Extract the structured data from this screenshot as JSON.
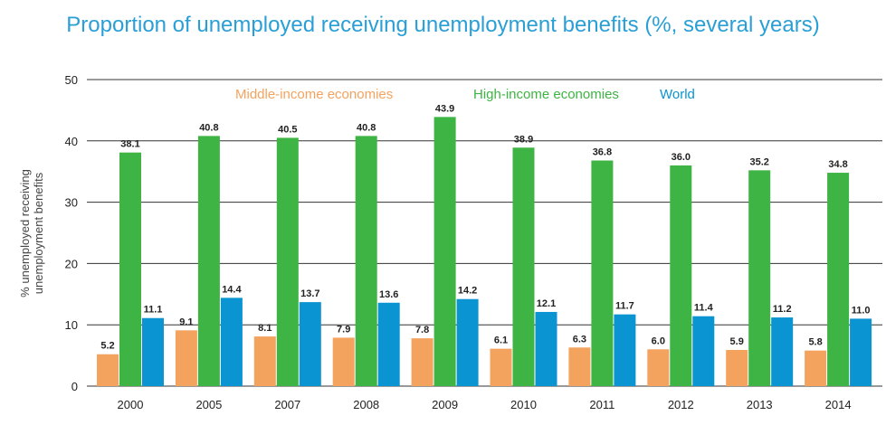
{
  "colors": {
    "title": "#2a9fd6",
    "middle": "#f4a35f",
    "high": "#3db443",
    "world": "#0a94d1",
    "axis": "#333333"
  },
  "chart_data": {
    "type": "bar",
    "title": "Proportion of unemployed receiving unemployment benefits (%, several years)",
    "ylabel_lines": [
      "% unemployed receiving",
      "unemployment benefits"
    ],
    "xlabel": "",
    "categories": [
      "2000",
      "2005",
      "2007",
      "2008",
      "2009",
      "2010",
      "2011",
      "2012",
      "2013",
      "2014"
    ],
    "ylim": [
      0,
      50
    ],
    "yticks": [
      0,
      10,
      20,
      30,
      40,
      50
    ],
    "grid": "horizontal",
    "legend_position": "top",
    "series": [
      {
        "name": "Middle-income economies",
        "color_key": "middle",
        "values": [
          5.2,
          9.1,
          8.1,
          7.9,
          7.8,
          6.1,
          6.3,
          6.0,
          5.9,
          5.8
        ],
        "labels": [
          "5.2",
          "9.1",
          "8.1",
          "7.9",
          "7.8",
          "6.1",
          "6.3",
          "6.0",
          "5.9",
          "5.8"
        ]
      },
      {
        "name": "High-income economies",
        "color_key": "high",
        "values": [
          38.1,
          40.8,
          40.5,
          40.8,
          43.9,
          38.9,
          36.8,
          36.0,
          35.2,
          34.8
        ],
        "labels": [
          "38.1",
          "40.8",
          "40.5",
          "40.8",
          "43.9",
          "38.9",
          "36.8",
          "36.0",
          "35.2",
          "34.8"
        ]
      },
      {
        "name": "World",
        "color_key": "world",
        "values": [
          11.1,
          14.4,
          13.7,
          13.6,
          14.2,
          12.1,
          11.7,
          11.4,
          11.2,
          11.0
        ],
        "labels": [
          "11.1",
          "14.4",
          "13.7",
          "13.6",
          "14.2",
          "12.1",
          "11.7",
          "11.4",
          "11.2",
          "11.0"
        ]
      }
    ]
  }
}
